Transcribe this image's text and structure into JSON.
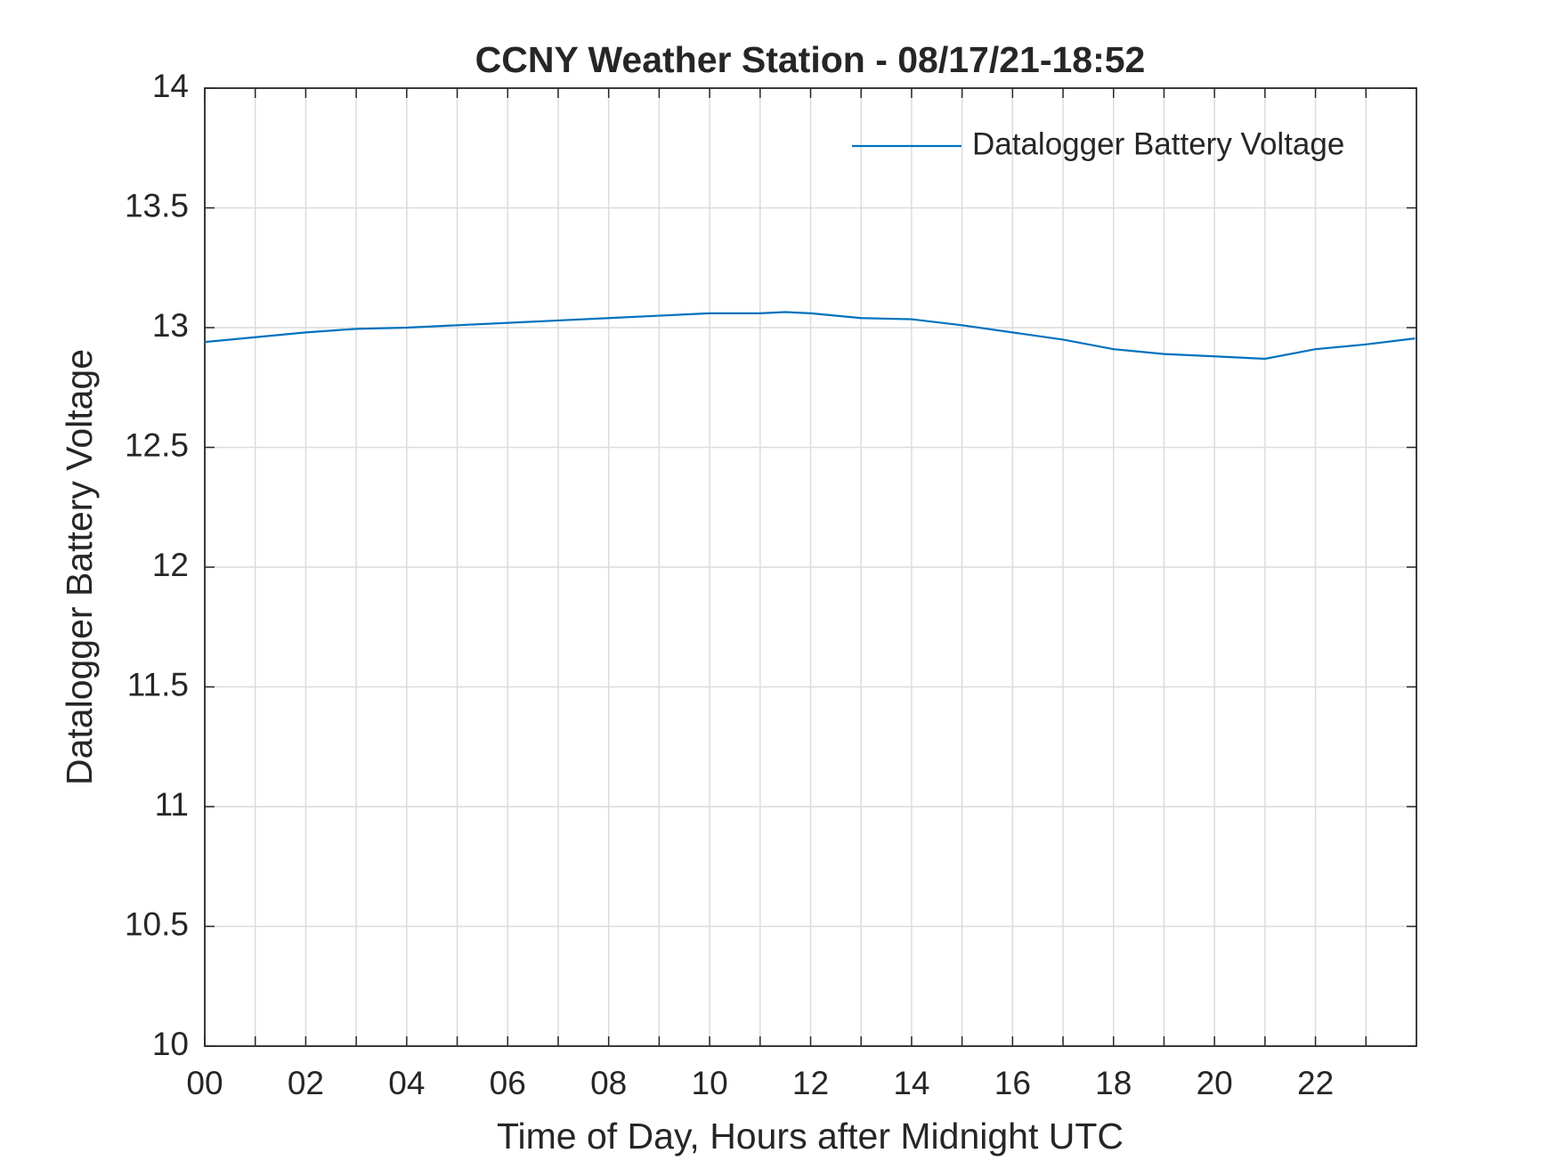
{
  "chart_data": {
    "type": "line",
    "title": "CCNY Weather Station - 08/17/21-18:52",
    "xlabel": "Time of Day, Hours after Midnight UTC",
    "ylabel": "Datalogger Battery Voltage",
    "x": [
      0,
      1,
      2,
      3,
      4,
      5,
      6,
      7,
      8,
      9,
      10,
      11,
      11.5,
      12,
      13,
      14,
      15,
      16,
      17,
      18,
      19,
      20,
      21,
      22,
      23,
      23.97
    ],
    "series": [
      {
        "name": "Datalogger Battery Voltage",
        "color": "#0072bd",
        "values": [
          12.94,
          12.96,
          12.98,
          12.995,
          13.0,
          13.01,
          13.02,
          13.03,
          13.04,
          13.05,
          13.06,
          13.06,
          13.065,
          13.06,
          13.04,
          13.035,
          13.01,
          12.98,
          12.95,
          12.91,
          12.89,
          12.88,
          12.87,
          12.91,
          12.93,
          12.955
        ]
      }
    ],
    "xlim": [
      0,
      24
    ],
    "xticks": [
      {
        "value": 0,
        "label": "00"
      },
      {
        "value": 2,
        "label": "02"
      },
      {
        "value": 4,
        "label": "04"
      },
      {
        "value": 6,
        "label": "06"
      },
      {
        "value": 8,
        "label": "08"
      },
      10,
      12,
      14,
      16,
      18,
      20,
      22
    ],
    "ylim": [
      10,
      14
    ],
    "yticks": [
      10,
      10.5,
      11,
      11.5,
      12,
      12.5,
      13,
      13.5,
      14
    ],
    "grid": true,
    "minor_grid_x": true,
    "legend": "northeast"
  }
}
